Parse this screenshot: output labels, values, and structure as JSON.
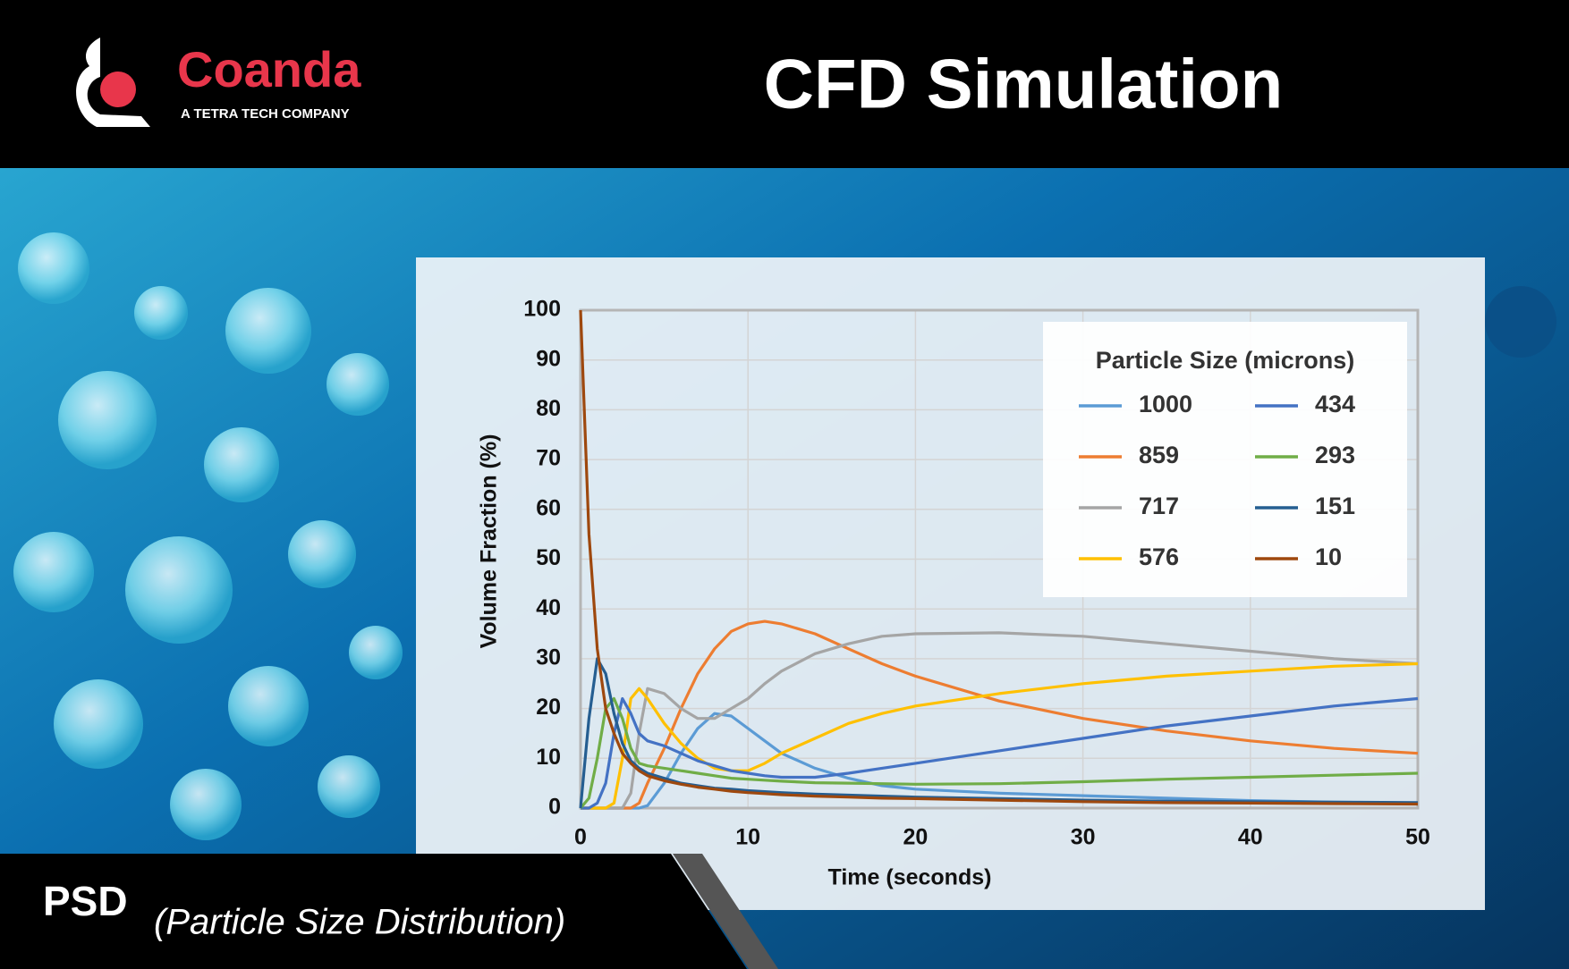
{
  "header": {
    "logo_name": "Coanda",
    "logo_tagline": "A TETRA TECH COMPANY",
    "title": "CFD Simulation"
  },
  "footer": {
    "label": "PSD",
    "description": "(Particle Size Distribution)"
  },
  "chart_data": {
    "type": "line",
    "x_label": "Time (seconds)",
    "y_label": "Volume Fraction (%)",
    "legend_title": "Particle Size (microns)",
    "legend_position": "upper right",
    "grid": true,
    "xlim": [
      0,
      50
    ],
    "xticks": [
      0,
      10,
      20,
      30,
      40,
      50
    ],
    "ylim": [
      0,
      100
    ],
    "yticks": [
      0,
      10,
      20,
      30,
      40,
      50,
      60,
      70,
      80,
      90,
      100
    ],
    "x": [
      0,
      0.5,
      1,
      1.5,
      2,
      2.5,
      3,
      3.5,
      4,
      5,
      6,
      7,
      8,
      9,
      10,
      11,
      12,
      14,
      16,
      18,
      20,
      25,
      30,
      35,
      40,
      45,
      50
    ],
    "series": [
      {
        "name": "1000",
        "color": "#5b9bd5",
        "values": [
          0,
          0,
          0,
          0,
          0,
          0,
          0,
          0,
          0.5,
          5,
          11,
          16,
          19,
          18.5,
          16,
          13.5,
          11,
          8,
          6,
          4.5,
          3.8,
          3,
          2.5,
          2,
          1.5,
          1.2,
          1
        ]
      },
      {
        "name": "859",
        "color": "#ed7d31",
        "values": [
          0,
          0,
          0,
          0,
          0,
          0,
          0,
          1,
          5,
          12,
          20,
          27,
          32,
          35.5,
          37,
          37.5,
          37,
          35,
          32,
          29,
          26.5,
          21.5,
          18,
          15.5,
          13.5,
          12,
          11
        ]
      },
      {
        "name": "717",
        "color": "#a5a5a5",
        "values": [
          0,
          0,
          0,
          0,
          0,
          0,
          3,
          15,
          24,
          23,
          20,
          18,
          18,
          20,
          22,
          25,
          27.5,
          31,
          33,
          34.5,
          35,
          35.2,
          34.5,
          33,
          31.5,
          30,
          29
        ]
      },
      {
        "name": "576",
        "color": "#ffc000",
        "values": [
          0,
          0,
          0,
          0,
          1,
          10,
          22,
          24,
          22,
          17,
          13,
          10,
          8,
          7.5,
          7.5,
          9,
          11,
          14,
          17,
          19,
          20.5,
          23,
          25,
          26.5,
          27.5,
          28.5,
          29
        ]
      },
      {
        "name": "434",
        "color": "#4472c4",
        "values": [
          0,
          0,
          1,
          5,
          15,
          22,
          19,
          15,
          13.5,
          12.5,
          11,
          9.5,
          8.5,
          7.5,
          7,
          6.5,
          6.2,
          6.2,
          7,
          8,
          9,
          11.5,
          14,
          16.5,
          18.5,
          20.5,
          22
        ]
      },
      {
        "name": "293",
        "color": "#70ad47",
        "values": [
          0,
          2,
          10,
          20,
          22,
          18,
          12,
          9,
          8.5,
          8,
          7.5,
          7,
          6.5,
          6,
          5.8,
          5.6,
          5.4,
          5.1,
          5,
          4.9,
          4.8,
          4.9,
          5.3,
          5.8,
          6.2,
          6.6,
          7
        ]
      },
      {
        "name": "151",
        "color": "#255e91",
        "values": [
          0,
          18,
          30,
          27,
          19,
          13,
          9.5,
          8,
          7,
          6,
          5,
          4.5,
          4,
          3.8,
          3.5,
          3.3,
          3.1,
          2.8,
          2.6,
          2.4,
          2.2,
          1.9,
          1.6,
          1.4,
          1.3,
          1.2,
          1.1
        ]
      },
      {
        "name": "10",
        "color": "#9e480e",
        "values": [
          100,
          55,
          32,
          20,
          15,
          11,
          9,
          7.5,
          6.5,
          5.5,
          4.8,
          4.2,
          3.8,
          3.4,
          3.1,
          2.9,
          2.7,
          2.4,
          2.2,
          2,
          1.9,
          1.6,
          1.3,
          1.1,
          1,
          0.9,
          0.8
        ]
      }
    ]
  }
}
